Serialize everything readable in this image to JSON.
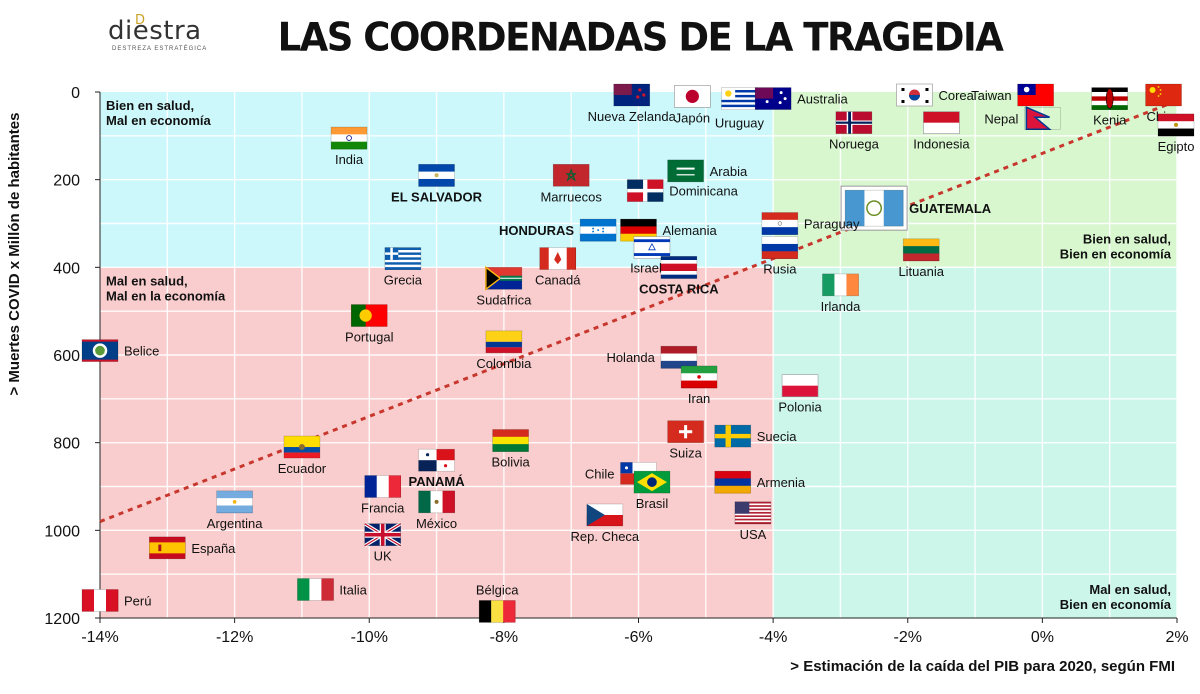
{
  "brand": {
    "name": "diestra",
    "tagline": "DESTREZA ESTRATÉGICA",
    "mark": "D"
  },
  "chart_data": {
    "type": "scatter",
    "title": "LAS COORDENADAS DE LA TRAGEDIA",
    "xlabel": "> Estimación de la caída del PIB para 2020, según FMI",
    "ylabel": "> Muertes COVID x Millón de habitantes",
    "xlim": [
      -14,
      2
    ],
    "ylim": [
      0,
      1200
    ],
    "y_inverted": true,
    "xticks": [
      -14,
      -12,
      -10,
      -8,
      -6,
      -4,
      -2,
      0,
      2
    ],
    "xtick_labels": [
      "-14%",
      "-12%",
      "-10%",
      "-8%",
      "-6%",
      "-4%",
      "-2%",
      "0%",
      "2%"
    ],
    "yticks": [
      0,
      200,
      400,
      600,
      800,
      1000,
      1200
    ],
    "ytick_labels": [
      "0",
      "200",
      "400",
      "600",
      "800",
      "1000",
      "1200"
    ],
    "grid": true,
    "quadrants": [
      {
        "label": "Bien en salud,\nMal en economía",
        "x": [
          -14,
          -4
        ],
        "y": [
          0,
          400
        ],
        "color": "#ccf8fb",
        "position": "top-left"
      },
      {
        "label": "Bien en salud,\nBien en economía",
        "x": [
          -4,
          2
        ],
        "y": [
          0,
          400
        ],
        "color": "#d8f7cf",
        "position": "bottom-right"
      },
      {
        "label": "Mal en salud,\nMal en la economía",
        "x": [
          -14,
          -4
        ],
        "y": [
          400,
          1200
        ],
        "color": "#f9cdcd",
        "position": "top-left"
      },
      {
        "label": "Mal en salud,\nBien en economía",
        "x": [
          -4,
          2
        ],
        "y": [
          400,
          1200
        ],
        "color": "#cdf6ea",
        "position": "bottom-right"
      }
    ],
    "trend_line": {
      "from": [
        -14,
        980
      ],
      "to": [
        2,
        20
      ],
      "color": "#c8372d"
    },
    "points": [
      {
        "name": "Nueva Zelanda",
        "x": -6.1,
        "y": 2,
        "flag": "nz",
        "label_pos": "below"
      },
      {
        "name": "Japón",
        "x": -5.2,
        "y": 10,
        "flag": "jp",
        "label_pos": "below"
      },
      {
        "name": "Uruguay",
        "x": -4.5,
        "y": 15,
        "flag": "uy",
        "label_pos": "below"
      },
      {
        "name": "Australia",
        "x": -4.0,
        "y": 15,
        "flag": "au",
        "label_pos": "right"
      },
      {
        "name": "Corea",
        "x": -1.9,
        "y": 0,
        "flag": "kr",
        "label_pos": "right"
      },
      {
        "name": "Taiwan",
        "x": -0.1,
        "y": 0,
        "flag": "tw",
        "label_pos": "left"
      },
      {
        "name": "China",
        "x": 1.8,
        "y": 0,
        "flag": "cn",
        "label_pos": "below"
      },
      {
        "name": "Kenia",
        "x": 1.0,
        "y": 15,
        "flag": "ke",
        "label_pos": "below"
      },
      {
        "name": "Nepal",
        "x": 0.0,
        "y": 60,
        "flag": "np",
        "label_pos": "left"
      },
      {
        "name": "Egipto",
        "x": 2.0,
        "y": 75,
        "flag": "eg",
        "label_pos": "below"
      },
      {
        "name": "Noruega",
        "x": -2.8,
        "y": 70,
        "flag": "no",
        "label_pos": "below"
      },
      {
        "name": "Indonesia",
        "x": -1.5,
        "y": 70,
        "flag": "id",
        "label_pos": "below"
      },
      {
        "name": "India",
        "x": -10.3,
        "y": 105,
        "flag": "in",
        "label_pos": "below"
      },
      {
        "name": "EL SALVADOR",
        "x": -9.0,
        "y": 190,
        "flag": "sv",
        "label_pos": "below",
        "bold": true
      },
      {
        "name": "Marruecos",
        "x": -7.0,
        "y": 190,
        "flag": "ma",
        "label_pos": "below"
      },
      {
        "name": "Arabia",
        "x": -5.3,
        "y": 180,
        "flag": "sa",
        "label_pos": "right"
      },
      {
        "name": "Dominicana",
        "x": -5.9,
        "y": 225,
        "flag": "do",
        "label_pos": "right"
      },
      {
        "name": "GUATEMALA",
        "x": -2.5,
        "y": 265,
        "flag": "gt",
        "label_pos": "right",
        "bold": true
      },
      {
        "name": "Paraguay",
        "x": -3.9,
        "y": 300,
        "flag": "py",
        "label_pos": "right"
      },
      {
        "name": "HONDURAS",
        "x": -6.6,
        "y": 315,
        "flag": "hn",
        "label_pos": "left",
        "bold": true
      },
      {
        "name": "Alemania",
        "x": -6.0,
        "y": 315,
        "flag": "de",
        "label_pos": "right"
      },
      {
        "name": "Israel",
        "x": -5.8,
        "y": 355,
        "flag": "il",
        "label_pos": "below-left"
      },
      {
        "name": "Rusia",
        "x": -3.9,
        "y": 355,
        "flag": "ru",
        "label_pos": "below"
      },
      {
        "name": "Lituania",
        "x": -1.8,
        "y": 360,
        "flag": "lt",
        "label_pos": "below"
      },
      {
        "name": "Grecia",
        "x": -9.5,
        "y": 380,
        "flag": "gr",
        "label_pos": "below"
      },
      {
        "name": "Canadá",
        "x": -7.2,
        "y": 380,
        "flag": "ca",
        "label_pos": "below"
      },
      {
        "name": "COSTA RICA",
        "x": -5.4,
        "y": 400,
        "flag": "cr",
        "label_pos": "below",
        "bold": true
      },
      {
        "name": "Sudafrica",
        "x": -8.0,
        "y": 425,
        "flag": "za",
        "label_pos": "below"
      },
      {
        "name": "Irlanda",
        "x": -3.0,
        "y": 440,
        "flag": "ie",
        "label_pos": "below"
      },
      {
        "name": "Portugal",
        "x": -10.0,
        "y": 510,
        "flag": "pt",
        "label_pos": "below"
      },
      {
        "name": "Colombia",
        "x": -8.0,
        "y": 570,
        "flag": "co",
        "label_pos": "below"
      },
      {
        "name": "Belice",
        "x": -14.0,
        "y": 590,
        "flag": "bz",
        "label_pos": "right"
      },
      {
        "name": "Holanda",
        "x": -5.4,
        "y": 605,
        "flag": "nl",
        "label_pos": "left"
      },
      {
        "name": "Iran",
        "x": -5.1,
        "y": 650,
        "flag": "ir",
        "label_pos": "below"
      },
      {
        "name": "Polonia",
        "x": -3.6,
        "y": 670,
        "flag": "pl",
        "label_pos": "below"
      },
      {
        "name": "Ecuador",
        "x": -11.0,
        "y": 810,
        "flag": "ec",
        "label_pos": "below"
      },
      {
        "name": "Bolivia",
        "x": -7.9,
        "y": 795,
        "flag": "bo",
        "label_pos": "below"
      },
      {
        "name": "Suiza",
        "x": -5.3,
        "y": 775,
        "flag": "ch",
        "label_pos": "below"
      },
      {
        "name": "Suecia",
        "x": -4.6,
        "y": 785,
        "flag": "se",
        "label_pos": "right"
      },
      {
        "name": "PANAMÁ",
        "x": -9.0,
        "y": 840,
        "flag": "pa",
        "label_pos": "below",
        "bold": true
      },
      {
        "name": "Chile",
        "x": -6.0,
        "y": 870,
        "flag": "cl",
        "label_pos": "left"
      },
      {
        "name": "Francia",
        "x": -9.8,
        "y": 900,
        "flag": "fr",
        "label_pos": "below"
      },
      {
        "name": "Brasil",
        "x": -5.8,
        "y": 890,
        "flag": "br",
        "label_pos": "below"
      },
      {
        "name": "Armenia",
        "x": -4.6,
        "y": 890,
        "flag": "am",
        "label_pos": "right"
      },
      {
        "name": "Argentina",
        "x": -12.0,
        "y": 935,
        "flag": "ar",
        "label_pos": "below"
      },
      {
        "name": "México",
        "x": -9.0,
        "y": 935,
        "flag": "mx",
        "label_pos": "below"
      },
      {
        "name": "Rep. Checa",
        "x": -6.5,
        "y": 965,
        "flag": "cz",
        "label_pos": "below"
      },
      {
        "name": "USA",
        "x": -4.3,
        "y": 960,
        "flag": "us",
        "label_pos": "below"
      },
      {
        "name": "UK",
        "x": -9.8,
        "y": 1010,
        "flag": "gb",
        "label_pos": "below"
      },
      {
        "name": "España",
        "x": -13.0,
        "y": 1040,
        "flag": "es",
        "label_pos": "right"
      },
      {
        "name": "Perú",
        "x": -14.0,
        "y": 1160,
        "flag": "pe",
        "label_pos": "right"
      },
      {
        "name": "Italia",
        "x": -10.8,
        "y": 1135,
        "flag": "it",
        "label_pos": "right"
      },
      {
        "name": "Bélgica",
        "x": -8.1,
        "y": 1185,
        "flag": "be",
        "label_pos": "above"
      }
    ]
  }
}
